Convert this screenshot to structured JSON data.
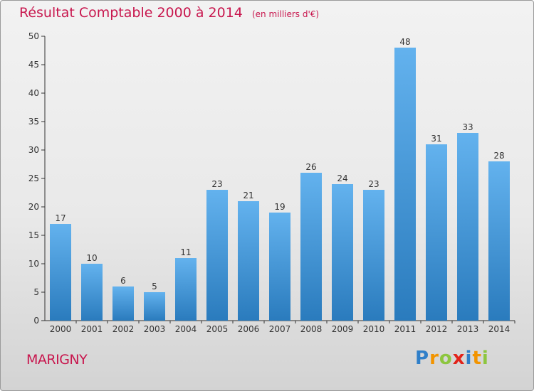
{
  "title": {
    "main": "Résultat Comptable 2000 à 2014",
    "unit": "(en milliers d'€)"
  },
  "commune": "MARIGNY",
  "brand": {
    "letters": [
      "P",
      "r",
      "o",
      "x",
      "i",
      "t",
      "i"
    ],
    "colors": [
      "#2f7fc9",
      "#f29400",
      "#8dc63f",
      "#e2231a",
      "#2f7fc9",
      "#f29400",
      "#8dc63f"
    ]
  },
  "colors": {
    "bar_light": "#63b2ee",
    "bar_dark": "#2a7bbd",
    "title": "#c8174e",
    "axis": "#333333"
  },
  "chart_data": {
    "type": "bar",
    "categories": [
      "2000",
      "2001",
      "2002",
      "2003",
      "2004",
      "2005",
      "2006",
      "2007",
      "2008",
      "2009",
      "2010",
      "2011",
      "2012",
      "2013",
      "2014"
    ],
    "values": [
      17,
      10,
      6,
      5,
      11,
      23,
      21,
      19,
      26,
      24,
      23,
      48,
      31,
      33,
      28
    ],
    "data_labels": [
      "17",
      "10",
      "6",
      "5",
      "11",
      "23",
      "21",
      "19",
      "26",
      "24",
      "23",
      "48",
      "31",
      "33",
      "28"
    ],
    "ylim": [
      0,
      50
    ],
    "yticks": [
      0,
      5,
      10,
      15,
      20,
      25,
      30,
      35,
      40,
      45,
      50
    ],
    "grid": false,
    "legend": "none"
  }
}
